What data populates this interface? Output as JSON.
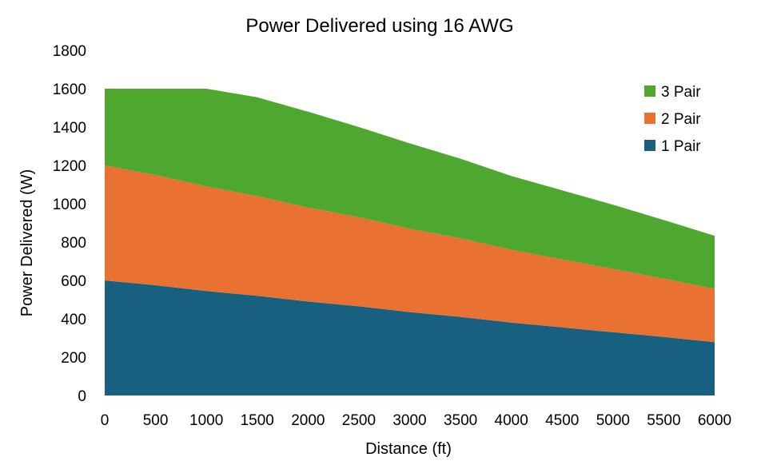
{
  "chart_data": {
    "type": "area",
    "stacked": true,
    "title": "Power Delivered using 16 AWG",
    "xlabel": "Distance (ft)",
    "ylabel": "Power Delivered (W)",
    "xlim": [
      0,
      6000
    ],
    "ylim": [
      0,
      1800
    ],
    "x_ticks": [
      "0",
      "500",
      "1000",
      "1500",
      "2000",
      "2500",
      "3000",
      "3500",
      "4000",
      "4500",
      "5000",
      "5500",
      "6000"
    ],
    "y_ticks": [
      "0",
      "200",
      "400",
      "600",
      "800",
      "1000",
      "1200",
      "1400",
      "1600",
      "1800"
    ],
    "grid": false,
    "legend_position": "top-right",
    "x": [
      0,
      500,
      1000,
      1500,
      2000,
      2500,
      3000,
      3500,
      4000,
      4500,
      5000,
      5500,
      6000
    ],
    "series": [
      {
        "name": "1 Pair",
        "color": "#17607f",
        "values": [
          600,
          575,
          545,
          520,
          490,
          465,
          435,
          410,
          380,
          355,
          330,
          305,
          278
        ]
      },
      {
        "name": "2 Pair",
        "color": "#e97132",
        "values": [
          600,
          575,
          545,
          520,
          490,
          465,
          435,
          410,
          380,
          355,
          330,
          305,
          278
        ]
      },
      {
        "name": "3 Pair",
        "color": "#4ea72e",
        "values": [
          400,
          450,
          510,
          515,
          500,
          470,
          445,
          415,
          385,
          360,
          335,
          305,
          277
        ]
      }
    ],
    "legend_order": [
      "3 Pair",
      "2 Pair",
      "1 Pair"
    ]
  }
}
